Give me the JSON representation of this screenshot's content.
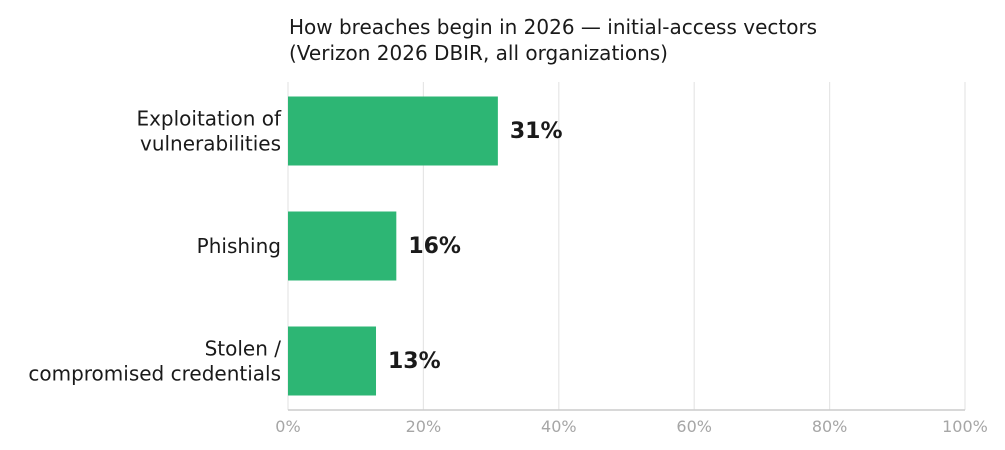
{
  "chart_data": {
    "type": "bar",
    "orientation": "horizontal",
    "title_lines": [
      "How breaches begin in 2026 — initial-access vectors",
      "(Verizon 2026 DBIR, all organizations)"
    ],
    "categories": [
      [
        "Exploitation of",
        "vulnerabilities"
      ],
      [
        "Phishing"
      ],
      [
        "Stolen /",
        "compromised credentials"
      ]
    ],
    "values": [
      31,
      16,
      13
    ],
    "value_labels": [
      "31%",
      "16%",
      "13%"
    ],
    "xlim": [
      0,
      100
    ],
    "xticks": [
      0,
      20,
      40,
      60,
      80,
      100
    ],
    "xtick_labels": [
      "0%",
      "20%",
      "40%",
      "60%",
      "80%",
      "100%"
    ],
    "grid": "vertical",
    "xlabel": "",
    "ylabel": "",
    "colors": {
      "bar": "#2db674",
      "text": "#1a1a1a",
      "tick": "#a6a6a6",
      "grid": "#e6e6e6",
      "axis": "#cccccc"
    }
  }
}
